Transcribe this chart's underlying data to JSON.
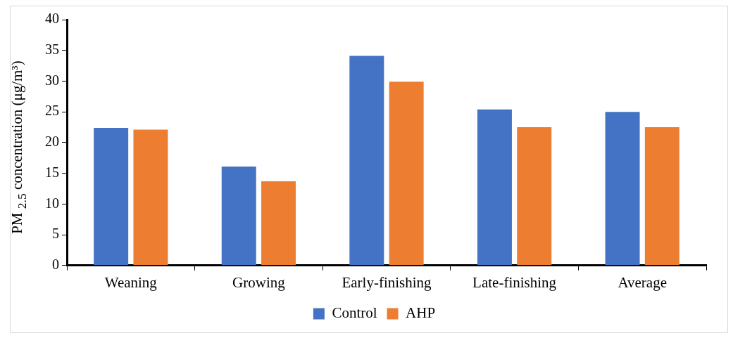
{
  "chart_data": {
    "type": "bar",
    "ylabel": "PM $_{2.5}$ concentration (μg/m³)",
    "categories": [
      "Weaning",
      "Growing",
      "Early-finishing",
      "Late-finishing",
      "Average"
    ],
    "series": [
      {
        "name": "Control",
        "color": "#4472c4",
        "values": [
          22.4,
          16.1,
          34.1,
          25.4,
          25.0
        ]
      },
      {
        "name": "AHP",
        "color": "#ed7d31",
        "values": [
          22.1,
          13.7,
          29.9,
          22.5,
          22.5
        ]
      }
    ],
    "ylim": [
      0,
      40
    ],
    "yticks": [
      0,
      5,
      10,
      15,
      20,
      25,
      30,
      35,
      40
    ],
    "grid": false,
    "legend": "bottom"
  }
}
